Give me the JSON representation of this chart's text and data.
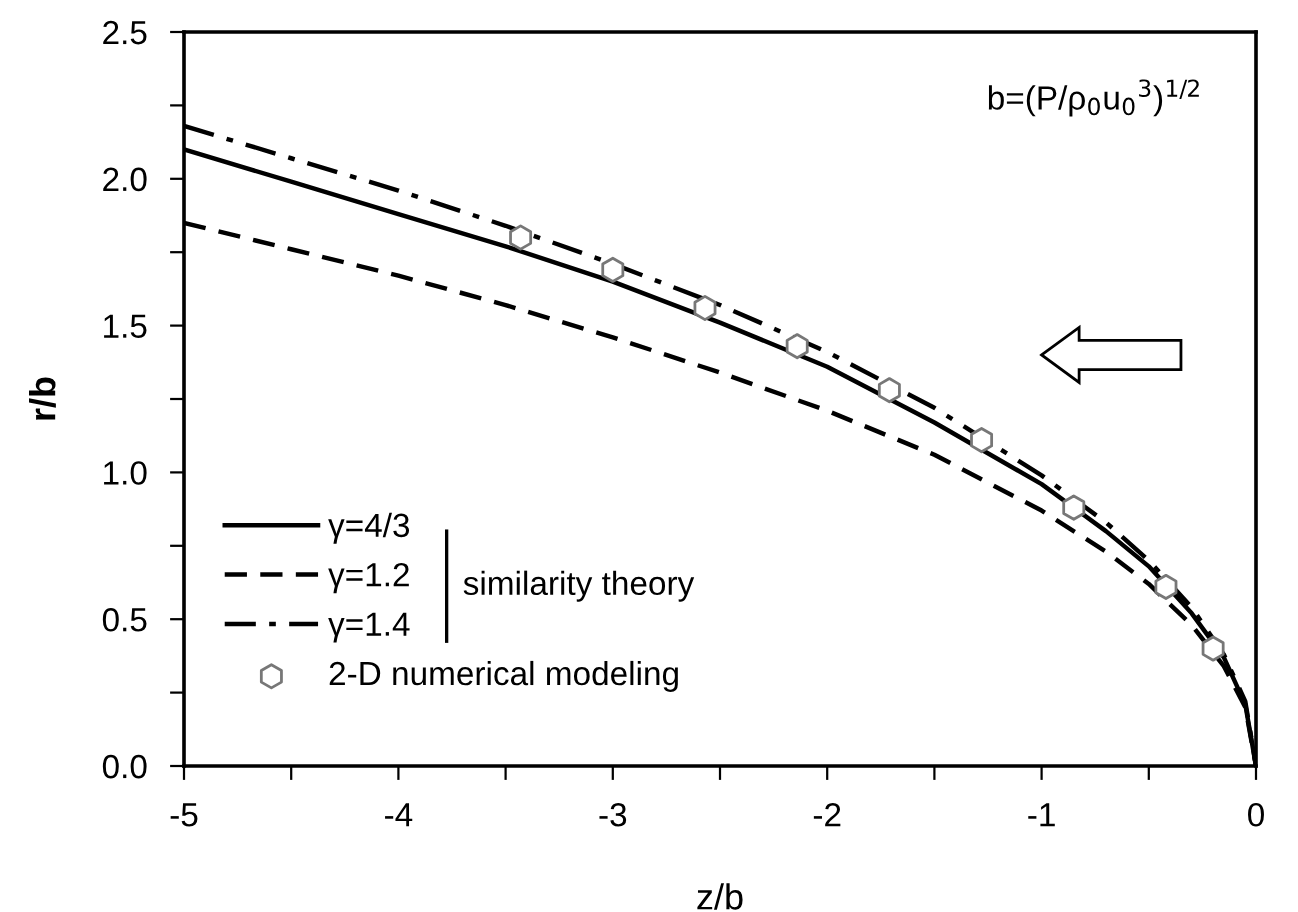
{
  "chart_data": {
    "type": "line",
    "xlabel": "z/b",
    "ylabel": "r/b",
    "xlim": [
      -5,
      0
    ],
    "ylim": [
      0,
      2.5
    ],
    "xticks": [
      -5,
      {
        "value": -4.5,
        "label": null
      },
      -4,
      {
        "value": -3.5,
        "label": null
      },
      -3,
      {
        "value": -2.5,
        "label": null
      },
      -2,
      {
        "value": -1.5,
        "label": null
      },
      -1,
      {
        "value": -0.5,
        "label": null
      },
      0
    ],
    "yticks": [
      {
        "value": 0,
        "label": "0.0"
      },
      {
        "value": 0.25,
        "label": null
      },
      {
        "value": 0.5,
        "label": "0.5"
      },
      {
        "value": 0.75,
        "label": null
      },
      {
        "value": 1,
        "label": "1.0"
      },
      {
        "value": 1.25,
        "label": null
      },
      {
        "value": 1.5,
        "label": "1.5"
      },
      {
        "value": 1.75,
        "label": null
      },
      {
        "value": 2,
        "label": "2.0"
      },
      {
        "value": 2.25,
        "label": null
      },
      {
        "value": 2.5,
        "label": "2.5"
      }
    ],
    "grid": false,
    "legend": "bottom left",
    "annotations": [
      "b=(P/ρ$_{0}$u$_{0}$$^{3}$)$^{1/2}$",
      "similarity theory"
    ],
    "series": [
      {
        "name": "γ=4/3",
        "color": "#000000",
        "line_style": "solid",
        "marker": "none",
        "x": [
          -5,
          -4.5,
          -4,
          -3.5,
          -3,
          -2.5,
          -2,
          -1.5,
          -1,
          -0.7,
          -0.5,
          -0.3,
          -0.15,
          -0.05,
          0
        ],
        "values": [
          2.1,
          1.99,
          1.88,
          1.77,
          1.65,
          1.51,
          1.36,
          1.17,
          0.96,
          0.8,
          0.68,
          0.52,
          0.37,
          0.21,
          0
        ]
      },
      {
        "name": "γ=1.2",
        "color": "#000000",
        "line_style": "dashed",
        "marker": "none",
        "x": [
          -5,
          -4.5,
          -4,
          -3.5,
          -3,
          -2.5,
          -2,
          -1.5,
          -1,
          -0.7,
          -0.5,
          -0.3,
          -0.15,
          -0.05,
          0
        ],
        "values": [
          1.85,
          1.76,
          1.67,
          1.57,
          1.46,
          1.34,
          1.21,
          1.06,
          0.87,
          0.73,
          0.62,
          0.48,
          0.34,
          0.2,
          0
        ]
      },
      {
        "name": "γ=1.4",
        "color": "#000000",
        "line_style": "dashdot",
        "marker": "none",
        "x": [
          -5,
          -4.5,
          -4,
          -3.5,
          -3,
          -2.5,
          -2,
          -1.5,
          -1,
          -0.7,
          -0.5,
          -0.3,
          -0.15,
          -0.05,
          0
        ],
        "values": [
          2.18,
          2.07,
          1.96,
          1.84,
          1.71,
          1.57,
          1.41,
          1.22,
          0.99,
          0.83,
          0.7,
          0.54,
          0.38,
          0.22,
          0
        ]
      },
      {
        "name": "2-D numerical modeling",
        "type": "scatter",
        "color": "#ffffff",
        "marker": "circle",
        "x": [
          -3.43,
          -3.0,
          -2.57,
          -2.14,
          -1.71,
          -1.28,
          -0.85,
          -0.42,
          -0.2
        ],
        "values": [
          1.8,
          1.69,
          1.56,
          1.43,
          1.28,
          1.11,
          0.88,
          0.61,
          0.4
        ]
      }
    ]
  }
}
